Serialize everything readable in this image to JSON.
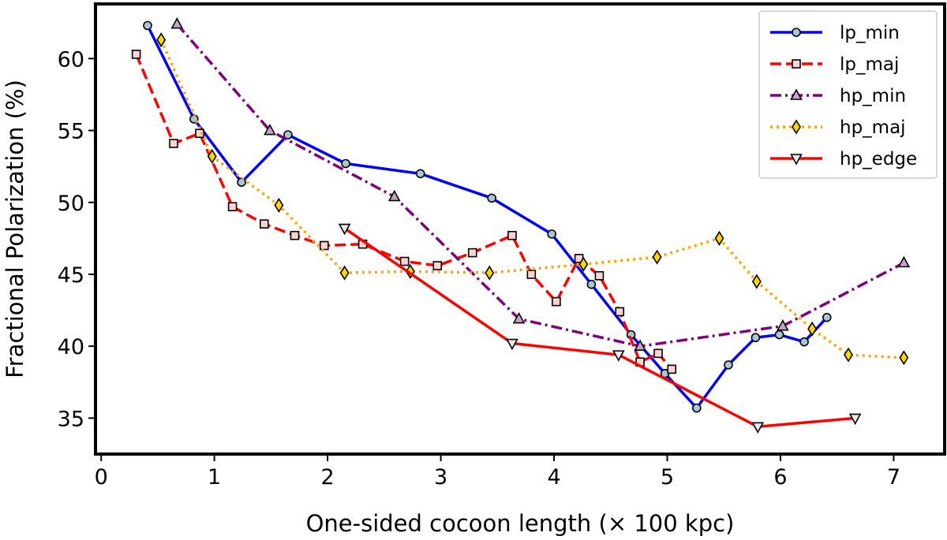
{
  "chart_data": {
    "type": "line",
    "xlabel": "One-sided cocoon length (× 100 kpc)",
    "ylabel": "Fractional Polarization (%)",
    "xlim": [
      -0.05,
      7.45
    ],
    "ylim": [
      32.5,
      63.8
    ],
    "xticks": [
      0,
      1,
      2,
      3,
      4,
      5,
      6,
      7
    ],
    "yticks": [
      35,
      40,
      45,
      50,
      55,
      60
    ],
    "grid": false,
    "legend_position": "top-right",
    "series": [
      {
        "name": "lp_min",
        "color": "#0000ff",
        "dash": "solid",
        "marker": "circle",
        "marker_color": "#a9c6d8",
        "x": [
          0.41,
          0.82,
          1.24,
          1.65,
          2.16,
          2.82,
          3.45,
          3.98,
          4.33,
          4.68,
          4.98,
          5.26,
          5.54,
          5.78,
          5.99,
          6.21,
          6.41
        ],
        "y": [
          62.3,
          55.8,
          51.4,
          54.7,
          52.7,
          52.0,
          50.3,
          47.8,
          44.3,
          40.8,
          38.1,
          35.7,
          38.7,
          40.6,
          40.8,
          40.3,
          42.0
        ]
      },
      {
        "name": "lp_maj",
        "color": "#ff0000",
        "dash": "dashed",
        "marker": "square",
        "marker_color": "#fcd3d3",
        "x": [
          0.31,
          0.64,
          0.87,
          1.16,
          1.44,
          1.71,
          1.97,
          2.31,
          2.68,
          2.97,
          3.28,
          3.63,
          3.8,
          4.02,
          4.22,
          4.4,
          4.58,
          4.76,
          4.92,
          5.04
        ],
        "y": [
          60.3,
          54.1,
          54.8,
          49.7,
          48.5,
          47.7,
          47.0,
          47.1,
          45.9,
          45.6,
          46.5,
          47.7,
          45.0,
          43.1,
          46.1,
          44.9,
          42.4,
          38.9,
          39.5,
          38.4
        ]
      },
      {
        "name": "hp_min",
        "color": "#800080",
        "dash": "dashdot",
        "marker": "triangle-up",
        "marker_color": "#c8a2c8",
        "x": [
          0.67,
          1.49,
          2.59,
          3.69,
          4.76,
          6.02,
          7.09
        ],
        "y": [
          62.4,
          55.0,
          50.4,
          41.9,
          40.0,
          41.4,
          45.8
        ]
      },
      {
        "name": "hp_maj",
        "color": "#ffa500",
        "dash": "dotted",
        "marker": "diamond",
        "marker_color": "#ffd700",
        "x": [
          0.53,
          0.98,
          1.57,
          2.15,
          2.73,
          3.43,
          4.26,
          4.91,
          5.46,
          5.79,
          6.28,
          6.6,
          7.09
        ],
        "y": [
          61.3,
          53.2,
          49.8,
          45.1,
          45.2,
          45.1,
          45.7,
          46.2,
          47.5,
          44.5,
          41.2,
          39.4,
          39.2
        ]
      },
      {
        "name": "hp_edge",
        "color": "#ff0000",
        "dash": "solid",
        "marker": "triangle-down",
        "marker_color": "#e8e8e8",
        "x": [
          2.15,
          3.63,
          4.57,
          5.8,
          6.66
        ],
        "y": [
          48.2,
          40.2,
          39.4,
          34.4,
          35.0
        ]
      }
    ]
  }
}
